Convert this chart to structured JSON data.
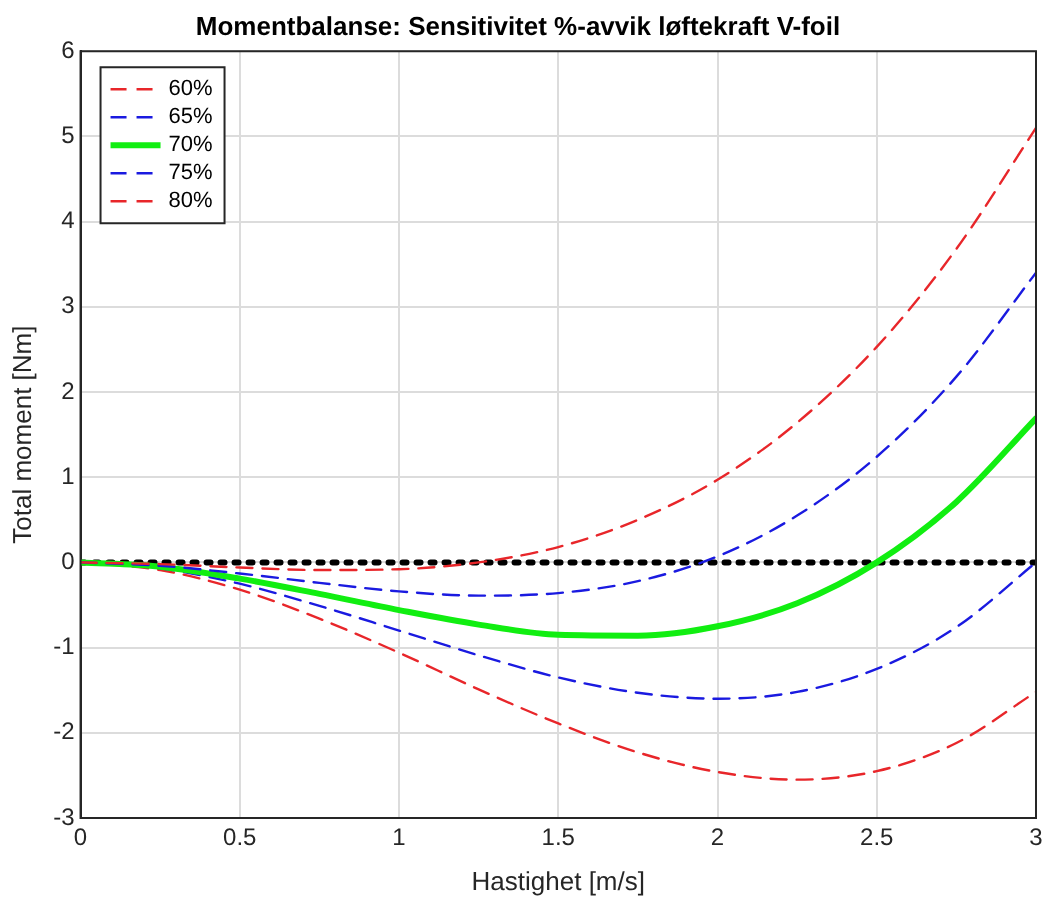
{
  "chart_data": {
    "type": "line",
    "title": "Momentbalanse: Sensitivitet %-avvik løftekraft V-foil",
    "xlabel": "Hastighet [m/s]",
    "ylabel": "Total moment [Nm]",
    "x": [
      0,
      0.25,
      0.5,
      0.75,
      1,
      1.25,
      1.5,
      1.75,
      2,
      2.25,
      2.5,
      2.75,
      3
    ],
    "series": [
      {
        "name": "60%",
        "color": "#e8262a",
        "line_style": "dashed",
        "values": [
          0,
          -0.02,
          -0.06,
          -0.09,
          -0.08,
          0,
          0.18,
          0.5,
          0.97,
          1.64,
          2.53,
          3.68,
          5.1
        ]
      },
      {
        "name": "65%",
        "color": "#1a1ae0",
        "line_style": "dashed",
        "values": [
          0,
          -0.04,
          -0.13,
          -0.24,
          -0.34,
          -0.39,
          -0.36,
          -0.22,
          0.07,
          0.55,
          1.24,
          2.18,
          3.4
        ]
      },
      {
        "name": "70%",
        "color": "#11ee11",
        "line_style": "solid",
        "values": [
          0,
          -0.05,
          -0.19,
          -0.37,
          -0.56,
          -0.73,
          -0.85,
          -0.86,
          -0.75,
          -0.48,
          0,
          0.71,
          1.69
        ]
      },
      {
        "name": "75%",
        "color": "#1a1ae0",
        "line_style": "dashed",
        "values": [
          0,
          -0.07,
          -0.25,
          -0.51,
          -0.8,
          -1.09,
          -1.35,
          -1.53,
          -1.6,
          -1.52,
          -1.25,
          -0.76,
          0
        ]
      },
      {
        "name": "80%",
        "color": "#e8262a",
        "line_style": "dashed",
        "values": [
          0,
          -0.09,
          -0.32,
          -0.66,
          -1.06,
          -1.49,
          -1.89,
          -2.23,
          -2.46,
          -2.55,
          -2.45,
          -2.12,
          -1.52
        ]
      },
      {
        "color": "#000000",
        "line_style": "dotted",
        "x": [
          0,
          3
        ],
        "values": [
          0,
          0
        ]
      }
    ],
    "xlim": [
      0,
      3
    ],
    "xticks": [
      0,
      0.5,
      1,
      1.5,
      2,
      2.5,
      3
    ],
    "ylim": [
      -3,
      6
    ],
    "yticks": [
      -3,
      -2,
      -1,
      0,
      1,
      2,
      3,
      4,
      5,
      6
    ],
    "grid": true,
    "legend": "top left",
    "marker": "none"
  }
}
